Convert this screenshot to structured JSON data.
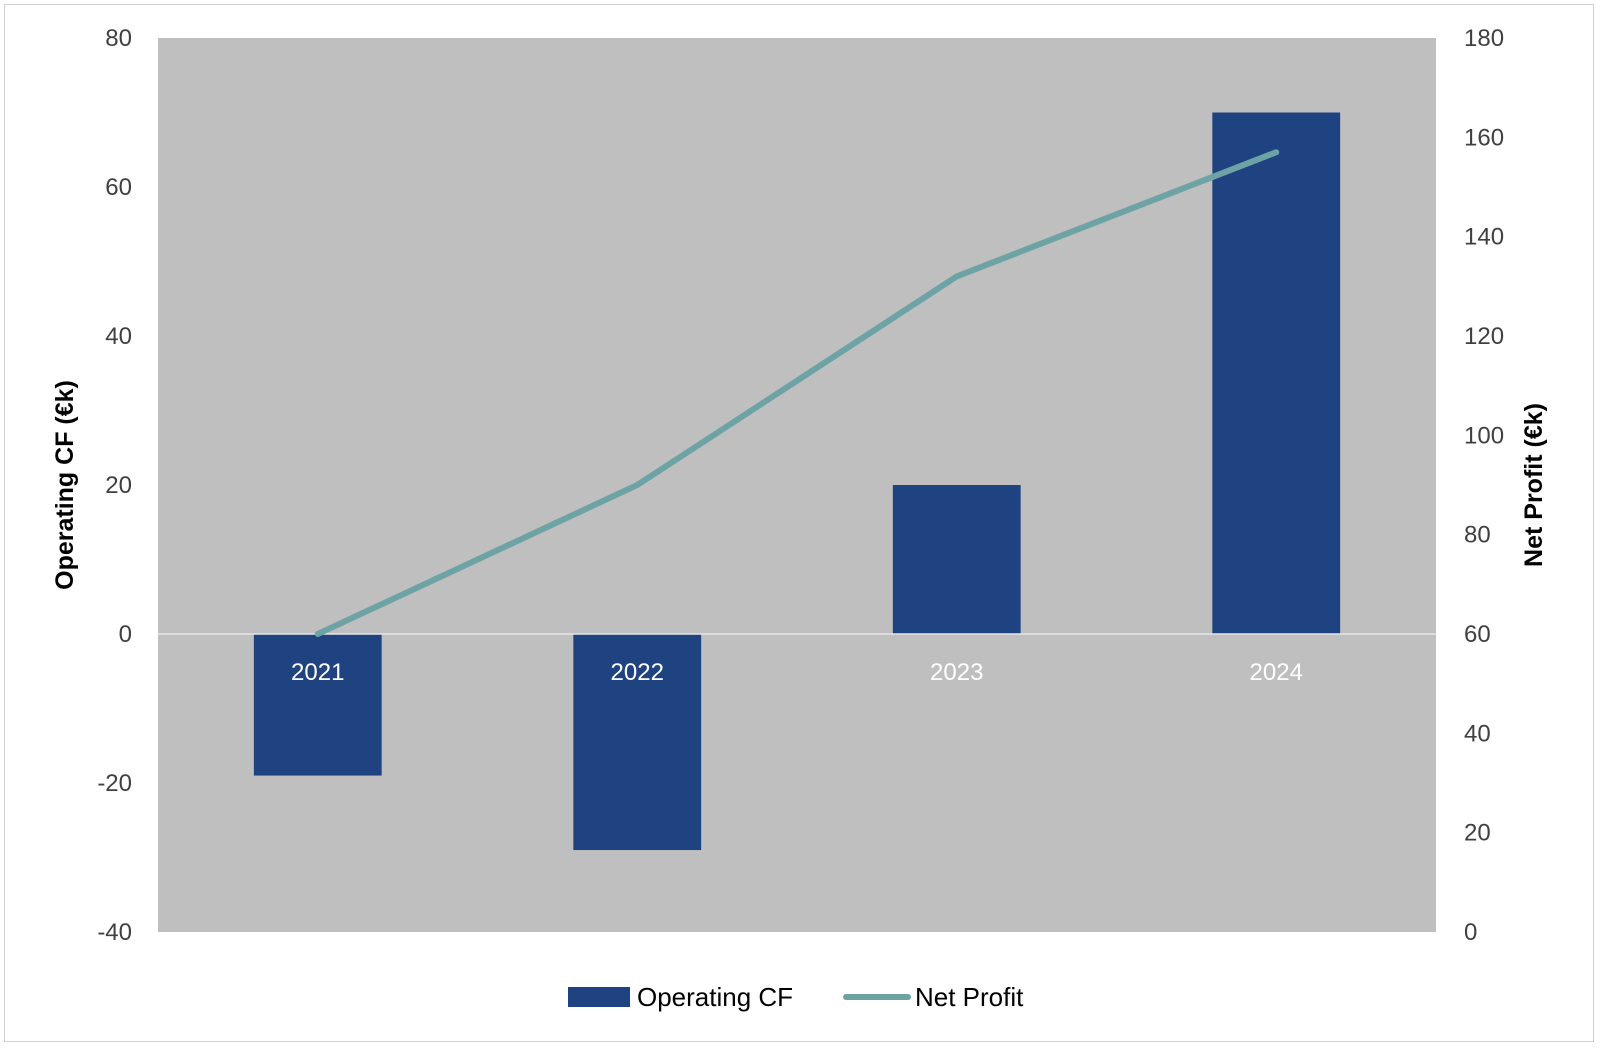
{
  "chart_data": {
    "type": "bar",
    "categories": [
      "2021",
      "2022",
      "2023",
      "2024"
    ],
    "series": [
      {
        "name": "Operating CF",
        "type": "bar",
        "axis": "left",
        "color": "#1f4380",
        "values": [
          -19,
          -29,
          20,
          70
        ]
      },
      {
        "name": "Net Profit",
        "type": "line",
        "axis": "right",
        "color": "#6ea3a6",
        "values": [
          60,
          90,
          132,
          157
        ]
      }
    ],
    "ylabel": "Operating CF (€k)",
    "y2label": "Net Profit (€k)",
    "ylim": [
      -40,
      80
    ],
    "y2lim": [
      0,
      180
    ],
    "yticks": [
      "80",
      "60",
      "40",
      "20",
      "0",
      "-20",
      "-40"
    ],
    "y2ticks": [
      "180",
      "160",
      "140",
      "120",
      "100",
      "80",
      "60",
      "40",
      "20",
      "0"
    ],
    "plot_background": "#bfbfbf",
    "grid": false,
    "legend": "bottom"
  }
}
